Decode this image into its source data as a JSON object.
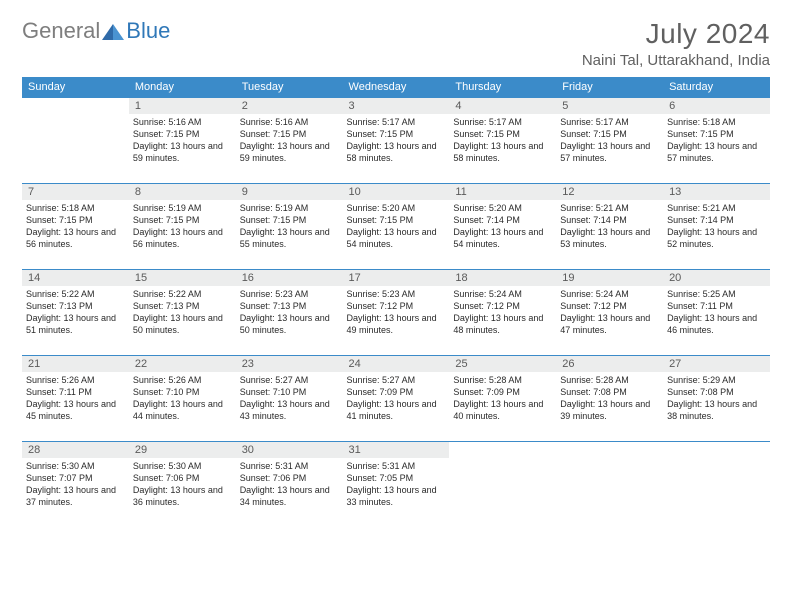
{
  "logo": {
    "general": "General",
    "blue": "Blue"
  },
  "title": "July 2024",
  "location": "Naini Tal, Uttarakhand, India",
  "colors": {
    "header_bg": "#3b8bc9",
    "header_fg": "#ffffff",
    "daynum_bg": "#eceded",
    "text": "#2a2a2a",
    "title": "#606060"
  },
  "weekdays": [
    "Sunday",
    "Monday",
    "Tuesday",
    "Wednesday",
    "Thursday",
    "Friday",
    "Saturday"
  ],
  "weeks": [
    [
      null,
      {
        "n": "1",
        "sr": "5:16 AM",
        "ss": "7:15 PM",
        "dl": "13 hours and 59 minutes."
      },
      {
        "n": "2",
        "sr": "5:16 AM",
        "ss": "7:15 PM",
        "dl": "13 hours and 59 minutes."
      },
      {
        "n": "3",
        "sr": "5:17 AM",
        "ss": "7:15 PM",
        "dl": "13 hours and 58 minutes."
      },
      {
        "n": "4",
        "sr": "5:17 AM",
        "ss": "7:15 PM",
        "dl": "13 hours and 58 minutes."
      },
      {
        "n": "5",
        "sr": "5:17 AM",
        "ss": "7:15 PM",
        "dl": "13 hours and 57 minutes."
      },
      {
        "n": "6",
        "sr": "5:18 AM",
        "ss": "7:15 PM",
        "dl": "13 hours and 57 minutes."
      }
    ],
    [
      {
        "n": "7",
        "sr": "5:18 AM",
        "ss": "7:15 PM",
        "dl": "13 hours and 56 minutes."
      },
      {
        "n": "8",
        "sr": "5:19 AM",
        "ss": "7:15 PM",
        "dl": "13 hours and 56 minutes."
      },
      {
        "n": "9",
        "sr": "5:19 AM",
        "ss": "7:15 PM",
        "dl": "13 hours and 55 minutes."
      },
      {
        "n": "10",
        "sr": "5:20 AM",
        "ss": "7:15 PM",
        "dl": "13 hours and 54 minutes."
      },
      {
        "n": "11",
        "sr": "5:20 AM",
        "ss": "7:14 PM",
        "dl": "13 hours and 54 minutes."
      },
      {
        "n": "12",
        "sr": "5:21 AM",
        "ss": "7:14 PM",
        "dl": "13 hours and 53 minutes."
      },
      {
        "n": "13",
        "sr": "5:21 AM",
        "ss": "7:14 PM",
        "dl": "13 hours and 52 minutes."
      }
    ],
    [
      {
        "n": "14",
        "sr": "5:22 AM",
        "ss": "7:13 PM",
        "dl": "13 hours and 51 minutes."
      },
      {
        "n": "15",
        "sr": "5:22 AM",
        "ss": "7:13 PM",
        "dl": "13 hours and 50 minutes."
      },
      {
        "n": "16",
        "sr": "5:23 AM",
        "ss": "7:13 PM",
        "dl": "13 hours and 50 minutes."
      },
      {
        "n": "17",
        "sr": "5:23 AM",
        "ss": "7:12 PM",
        "dl": "13 hours and 49 minutes."
      },
      {
        "n": "18",
        "sr": "5:24 AM",
        "ss": "7:12 PM",
        "dl": "13 hours and 48 minutes."
      },
      {
        "n": "19",
        "sr": "5:24 AM",
        "ss": "7:12 PM",
        "dl": "13 hours and 47 minutes."
      },
      {
        "n": "20",
        "sr": "5:25 AM",
        "ss": "7:11 PM",
        "dl": "13 hours and 46 minutes."
      }
    ],
    [
      {
        "n": "21",
        "sr": "5:26 AM",
        "ss": "7:11 PM",
        "dl": "13 hours and 45 minutes."
      },
      {
        "n": "22",
        "sr": "5:26 AM",
        "ss": "7:10 PM",
        "dl": "13 hours and 44 minutes."
      },
      {
        "n": "23",
        "sr": "5:27 AM",
        "ss": "7:10 PM",
        "dl": "13 hours and 43 minutes."
      },
      {
        "n": "24",
        "sr": "5:27 AM",
        "ss": "7:09 PM",
        "dl": "13 hours and 41 minutes."
      },
      {
        "n": "25",
        "sr": "5:28 AM",
        "ss": "7:09 PM",
        "dl": "13 hours and 40 minutes."
      },
      {
        "n": "26",
        "sr": "5:28 AM",
        "ss": "7:08 PM",
        "dl": "13 hours and 39 minutes."
      },
      {
        "n": "27",
        "sr": "5:29 AM",
        "ss": "7:08 PM",
        "dl": "13 hours and 38 minutes."
      }
    ],
    [
      {
        "n": "28",
        "sr": "5:30 AM",
        "ss": "7:07 PM",
        "dl": "13 hours and 37 minutes."
      },
      {
        "n": "29",
        "sr": "5:30 AM",
        "ss": "7:06 PM",
        "dl": "13 hours and 36 minutes."
      },
      {
        "n": "30",
        "sr": "5:31 AM",
        "ss": "7:06 PM",
        "dl": "13 hours and 34 minutes."
      },
      {
        "n": "31",
        "sr": "5:31 AM",
        "ss": "7:05 PM",
        "dl": "13 hours and 33 minutes."
      },
      null,
      null,
      null
    ]
  ],
  "labels": {
    "sunrise": "Sunrise:",
    "sunset": "Sunset:",
    "daylight": "Daylight:"
  }
}
